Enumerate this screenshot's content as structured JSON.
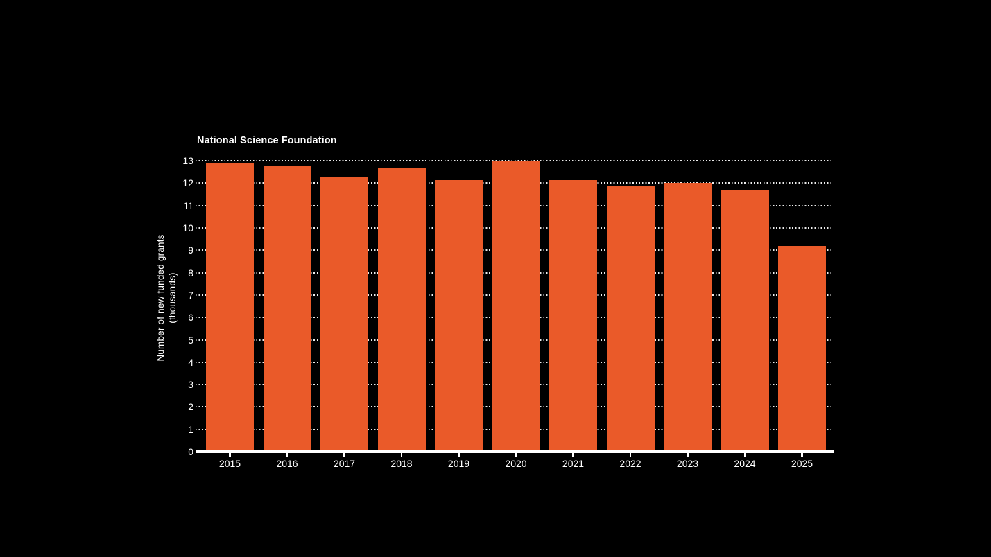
{
  "chart": {
    "title": "National Science Foundation",
    "ylabel_line1": "Number of new funded grants",
    "ylabel_line2": "(thousands)"
  },
  "chart_data": {
    "type": "bar",
    "categories": [
      "2015",
      "2016",
      "2017",
      "2018",
      "2019",
      "2020",
      "2021",
      "2022",
      "2023",
      "2024",
      "2025"
    ],
    "values": [
      12.9,
      12.75,
      12.3,
      12.65,
      12.15,
      13.0,
      12.15,
      11.9,
      12.0,
      11.7,
      9.2
    ],
    "title": "National Science Foundation",
    "xlabel": "",
    "ylabel": "Number of new funded grants (thousands)",
    "ylim": [
      0,
      13
    ],
    "ytick_step": 1,
    "grid": "dotted-horizontal",
    "legend": "none",
    "bar_color": "#EA5A29",
    "background_color": "#000000",
    "text_color": "#FFFFFF",
    "axis_color": "#FFFFFF"
  }
}
